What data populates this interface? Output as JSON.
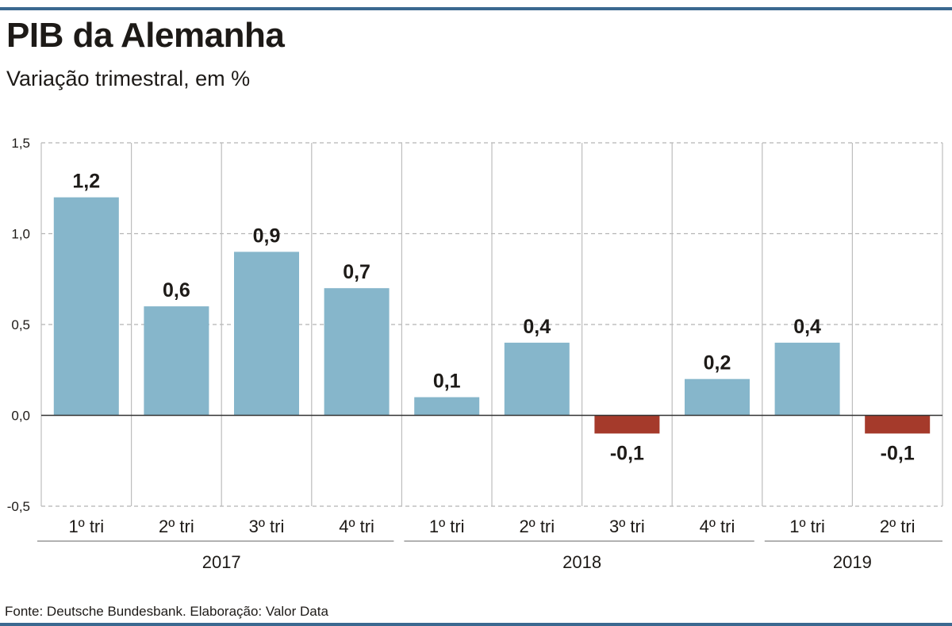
{
  "title": "PIB da Alemanha",
  "subtitle": "Variação trimestral, em %",
  "source": "Fonte: Deutsche Bundesbank. Elaboração: Valor Data",
  "colors": {
    "positive": "#86b6cb",
    "negative": "#a53a2b",
    "accent": "#3b6990"
  },
  "chart_data": {
    "type": "bar",
    "title": "PIB da Alemanha",
    "subtitle": "Variação trimestral, em %",
    "categories": [
      "1º tri",
      "2º tri",
      "3º tri",
      "4º tri",
      "1º tri",
      "2º tri",
      "3º tri",
      "4º tri",
      "1º tri",
      "2º tri"
    ],
    "groups": [
      {
        "label": "2017",
        "count": 4
      },
      {
        "label": "2018",
        "count": 4
      },
      {
        "label": "2019",
        "count": 2
      }
    ],
    "values": [
      1.2,
      0.6,
      0.9,
      0.7,
      0.1,
      0.4,
      -0.1,
      0.2,
      0.4,
      -0.1
    ],
    "data_labels": [
      "1,2",
      "0,6",
      "0,9",
      "0,7",
      "0,1",
      "0,4",
      "-0,1",
      "0,2",
      "0,4",
      "-0,1"
    ],
    "ylim": [
      -0.5,
      1.5
    ],
    "yticks": [
      1.5,
      1.0,
      0.5,
      0.0,
      -0.5
    ],
    "ytick_labels": [
      "1,5",
      "1,0",
      "0,5",
      "0,0",
      "-0,5"
    ],
    "grid": true,
    "xlabel": "",
    "ylabel": ""
  }
}
